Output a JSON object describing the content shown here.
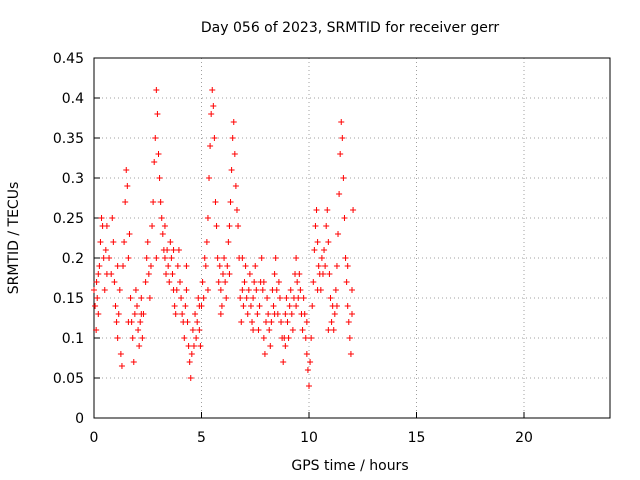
{
  "chart_data": {
    "type": "scatter",
    "title": "Day 056 of 2023, SRMTID for receiver gerr",
    "xlabel": "GPS time / hours",
    "ylabel": "SRMTID / TECUs",
    "xlim": [
      0,
      24
    ],
    "ylim": [
      0,
      0.45
    ],
    "xticks": [
      "0",
      "5",
      "10",
      "15",
      "20"
    ],
    "yticks": [
      "0",
      "0.05",
      "0.1",
      "0.15",
      "0.2",
      "0.25",
      "0.3",
      "0.35",
      "0.4",
      "0.45"
    ],
    "grid": true,
    "marker": "+",
    "color": "#ff0000",
    "series": [
      {
        "points": [
          [
            0.0,
            0.16
          ],
          [
            0.05,
            0.14
          ],
          [
            0.1,
            0.11
          ],
          [
            0.12,
            0.17
          ],
          [
            0.15,
            0.15
          ],
          [
            0.2,
            0.18
          ],
          [
            0.25,
            0.19
          ],
          [
            0.3,
            0.22
          ],
          [
            0.35,
            0.25
          ],
          [
            0.4,
            0.24
          ],
          [
            0.45,
            0.2
          ],
          [
            0.5,
            0.16
          ],
          [
            0.55,
            0.21
          ],
          [
            0.6,
            0.24
          ],
          [
            0.7,
            0.2
          ],
          [
            0.8,
            0.18
          ],
          [
            0.85,
            0.25
          ],
          [
            0.9,
            0.22
          ],
          [
            0.95,
            0.17
          ],
          [
            1.0,
            0.14
          ],
          [
            1.05,
            0.12
          ],
          [
            1.1,
            0.1
          ],
          [
            1.15,
            0.13
          ],
          [
            1.2,
            0.16
          ],
          [
            1.25,
            0.08
          ],
          [
            1.3,
            0.065
          ],
          [
            1.35,
            0.19
          ],
          [
            1.4,
            0.22
          ],
          [
            1.45,
            0.27
          ],
          [
            1.5,
            0.31
          ],
          [
            1.55,
            0.29
          ],
          [
            1.6,
            0.2
          ],
          [
            1.65,
            0.23
          ],
          [
            1.7,
            0.15
          ],
          [
            1.75,
            0.12
          ],
          [
            1.8,
            0.1
          ],
          [
            1.85,
            0.07
          ],
          [
            1.9,
            0.13
          ],
          [
            1.95,
            0.16
          ],
          [
            2.0,
            0.14
          ],
          [
            2.05,
            0.11
          ],
          [
            2.1,
            0.09
          ],
          [
            2.15,
            0.12
          ],
          [
            2.2,
            0.15
          ],
          [
            2.25,
            0.1
          ],
          [
            2.3,
            0.13
          ],
          [
            2.4,
            0.17
          ],
          [
            2.45,
            0.2
          ],
          [
            2.5,
            0.22
          ],
          [
            2.55,
            0.18
          ],
          [
            2.6,
            0.15
          ],
          [
            2.65,
            0.19
          ],
          [
            2.7,
            0.24
          ],
          [
            2.75,
            0.27
          ],
          [
            2.8,
            0.32
          ],
          [
            2.85,
            0.35
          ],
          [
            2.9,
            0.41
          ],
          [
            2.95,
            0.38
          ],
          [
            3.0,
            0.33
          ],
          [
            3.05,
            0.3
          ],
          [
            3.1,
            0.27
          ],
          [
            3.15,
            0.25
          ],
          [
            3.2,
            0.23
          ],
          [
            3.25,
            0.21
          ],
          [
            3.3,
            0.2
          ],
          [
            3.35,
            0.18
          ],
          [
            3.4,
            0.21
          ],
          [
            3.45,
            0.19
          ],
          [
            3.5,
            0.17
          ],
          [
            3.55,
            0.22
          ],
          [
            3.6,
            0.2
          ],
          [
            3.65,
            0.18
          ],
          [
            3.7,
            0.16
          ],
          [
            3.75,
            0.14
          ],
          [
            3.8,
            0.13
          ],
          [
            3.85,
            0.16
          ],
          [
            3.9,
            0.19
          ],
          [
            3.95,
            0.21
          ],
          [
            4.0,
            0.17
          ],
          [
            4.05,
            0.15
          ],
          [
            4.1,
            0.13
          ],
          [
            4.15,
            0.12
          ],
          [
            4.2,
            0.1
          ],
          [
            4.25,
            0.14
          ],
          [
            4.3,
            0.16
          ],
          [
            4.35,
            0.12
          ],
          [
            4.4,
            0.09
          ],
          [
            4.45,
            0.07
          ],
          [
            4.5,
            0.05
          ],
          [
            4.55,
            0.08
          ],
          [
            4.6,
            0.11
          ],
          [
            4.65,
            0.09
          ],
          [
            4.7,
            0.13
          ],
          [
            4.75,
            0.1
          ],
          [
            4.8,
            0.12
          ],
          [
            4.85,
            0.15
          ],
          [
            4.9,
            0.11
          ],
          [
            4.95,
            0.09
          ],
          [
            5.0,
            0.14
          ],
          [
            5.05,
            0.17
          ],
          [
            5.1,
            0.15
          ],
          [
            5.15,
            0.2
          ],
          [
            5.2,
            0.19
          ],
          [
            5.25,
            0.22
          ],
          [
            5.3,
            0.25
          ],
          [
            5.35,
            0.3
          ],
          [
            5.4,
            0.34
          ],
          [
            5.45,
            0.38
          ],
          [
            5.5,
            0.41
          ],
          [
            5.55,
            0.39
          ],
          [
            5.6,
            0.35
          ],
          [
            5.65,
            0.27
          ],
          [
            5.7,
            0.24
          ],
          [
            5.75,
            0.2
          ],
          [
            5.8,
            0.17
          ],
          [
            5.85,
            0.19
          ],
          [
            5.9,
            0.16
          ],
          [
            5.95,
            0.14
          ],
          [
            6.0,
            0.18
          ],
          [
            6.05,
            0.2
          ],
          [
            6.1,
            0.17
          ],
          [
            6.15,
            0.15
          ],
          [
            6.2,
            0.19
          ],
          [
            6.25,
            0.22
          ],
          [
            6.3,
            0.24
          ],
          [
            6.35,
            0.27
          ],
          [
            6.4,
            0.31
          ],
          [
            6.45,
            0.35
          ],
          [
            6.5,
            0.37
          ],
          [
            6.55,
            0.33
          ],
          [
            6.6,
            0.29
          ],
          [
            6.65,
            0.26
          ],
          [
            6.7,
            0.24
          ],
          [
            6.75,
            0.2
          ],
          [
            6.8,
            0.15
          ],
          [
            6.85,
            0.12
          ],
          [
            6.9,
            0.16
          ],
          [
            6.95,
            0.14
          ],
          [
            7.0,
            0.17
          ],
          [
            7.05,
            0.19
          ],
          [
            7.1,
            0.15
          ],
          [
            7.15,
            0.13
          ],
          [
            7.2,
            0.16
          ],
          [
            7.25,
            0.18
          ],
          [
            7.3,
            0.14
          ],
          [
            7.35,
            0.12
          ],
          [
            7.4,
            0.15
          ],
          [
            7.45,
            0.17
          ],
          [
            7.5,
            0.19
          ],
          [
            7.55,
            0.16
          ],
          [
            7.6,
            0.13
          ],
          [
            7.65,
            0.11
          ],
          [
            7.7,
            0.14
          ],
          [
            7.75,
            0.17
          ],
          [
            7.8,
            0.2
          ],
          [
            7.85,
            0.16
          ],
          [
            7.9,
            0.1
          ],
          [
            7.95,
            0.08
          ],
          [
            8.0,
            0.12
          ],
          [
            8.05,
            0.15
          ],
          [
            8.1,
            0.13
          ],
          [
            8.15,
            0.11
          ],
          [
            8.2,
            0.09
          ],
          [
            8.25,
            0.12
          ],
          [
            8.3,
            0.16
          ],
          [
            8.35,
            0.14
          ],
          [
            8.4,
            0.18
          ],
          [
            8.45,
            0.2
          ],
          [
            8.5,
            0.16
          ],
          [
            8.55,
            0.13
          ],
          [
            8.6,
            0.17
          ],
          [
            8.65,
            0.15
          ],
          [
            8.7,
            0.12
          ],
          [
            8.75,
            0.1
          ],
          [
            8.8,
            0.07
          ],
          [
            8.85,
            0.1
          ],
          [
            8.9,
            0.13
          ],
          [
            8.95,
            0.15
          ],
          [
            9.0,
            0.12
          ],
          [
            9.05,
            0.1
          ],
          [
            9.1,
            0.14
          ],
          [
            9.15,
            0.16
          ],
          [
            9.2,
            0.13
          ],
          [
            9.25,
            0.11
          ],
          [
            9.3,
            0.15
          ],
          [
            9.35,
            0.18
          ],
          [
            9.4,
            0.2
          ],
          [
            9.45,
            0.17
          ],
          [
            9.5,
            0.15
          ],
          [
            9.55,
            0.18
          ],
          [
            9.6,
            0.16
          ],
          [
            9.65,
            0.13
          ],
          [
            9.7,
            0.11
          ],
          [
            9.75,
            0.15
          ],
          [
            9.8,
            0.13
          ],
          [
            9.85,
            0.1
          ],
          [
            9.9,
            0.08
          ],
          [
            9.95,
            0.06
          ],
          [
            10.0,
            0.04
          ],
          [
            10.05,
            0.07
          ],
          [
            10.1,
            0.1
          ],
          [
            10.15,
            0.14
          ],
          [
            10.2,
            0.17
          ],
          [
            10.25,
            0.21
          ],
          [
            10.3,
            0.24
          ],
          [
            10.35,
            0.26
          ],
          [
            10.4,
            0.22
          ],
          [
            10.45,
            0.19
          ],
          [
            10.5,
            0.18
          ],
          [
            10.55,
            0.16
          ],
          [
            10.6,
            0.2
          ],
          [
            10.65,
            0.18
          ],
          [
            10.7,
            0.21
          ],
          [
            10.75,
            0.19
          ],
          [
            10.8,
            0.24
          ],
          [
            10.85,
            0.26
          ],
          [
            10.9,
            0.22
          ],
          [
            10.95,
            0.18
          ],
          [
            11.0,
            0.15
          ],
          [
            11.05,
            0.12
          ],
          [
            11.1,
            0.14
          ],
          [
            11.15,
            0.11
          ],
          [
            11.2,
            0.13
          ],
          [
            11.25,
            0.16
          ],
          [
            11.3,
            0.19
          ],
          [
            11.35,
            0.23
          ],
          [
            11.4,
            0.28
          ],
          [
            11.45,
            0.33
          ],
          [
            11.5,
            0.37
          ],
          [
            11.55,
            0.35
          ],
          [
            11.6,
            0.3
          ],
          [
            11.65,
            0.25
          ],
          [
            11.7,
            0.2
          ],
          [
            11.75,
            0.17
          ],
          [
            11.8,
            0.14
          ],
          [
            11.85,
            0.12
          ],
          [
            11.9,
            0.1
          ],
          [
            11.95,
            0.08
          ],
          [
            12.0,
            0.16
          ],
          [
            12.05,
            0.26
          ],
          [
            0.2,
            0.13
          ],
          [
            0.6,
            0.18
          ],
          [
            1.1,
            0.19
          ],
          [
            1.6,
            0.12
          ],
          [
            2.2,
            0.13
          ],
          [
            2.9,
            0.2
          ],
          [
            3.3,
            0.24
          ],
          [
            3.7,
            0.21
          ],
          [
            4.3,
            0.19
          ],
          [
            4.9,
            0.14
          ],
          [
            5.3,
            0.16
          ],
          [
            5.9,
            0.13
          ],
          [
            6.3,
            0.18
          ],
          [
            6.9,
            0.2
          ],
          [
            7.4,
            0.11
          ],
          [
            7.9,
            0.17
          ],
          [
            8.4,
            0.13
          ],
          [
            8.9,
            0.09
          ],
          [
            9.4,
            0.14
          ],
          [
            9.9,
            0.12
          ],
          [
            10.4,
            0.16
          ],
          [
            10.9,
            0.11
          ],
          [
            11.3,
            0.14
          ],
          [
            11.8,
            0.19
          ],
          [
            12.0,
            0.13
          ]
        ]
      }
    ]
  }
}
